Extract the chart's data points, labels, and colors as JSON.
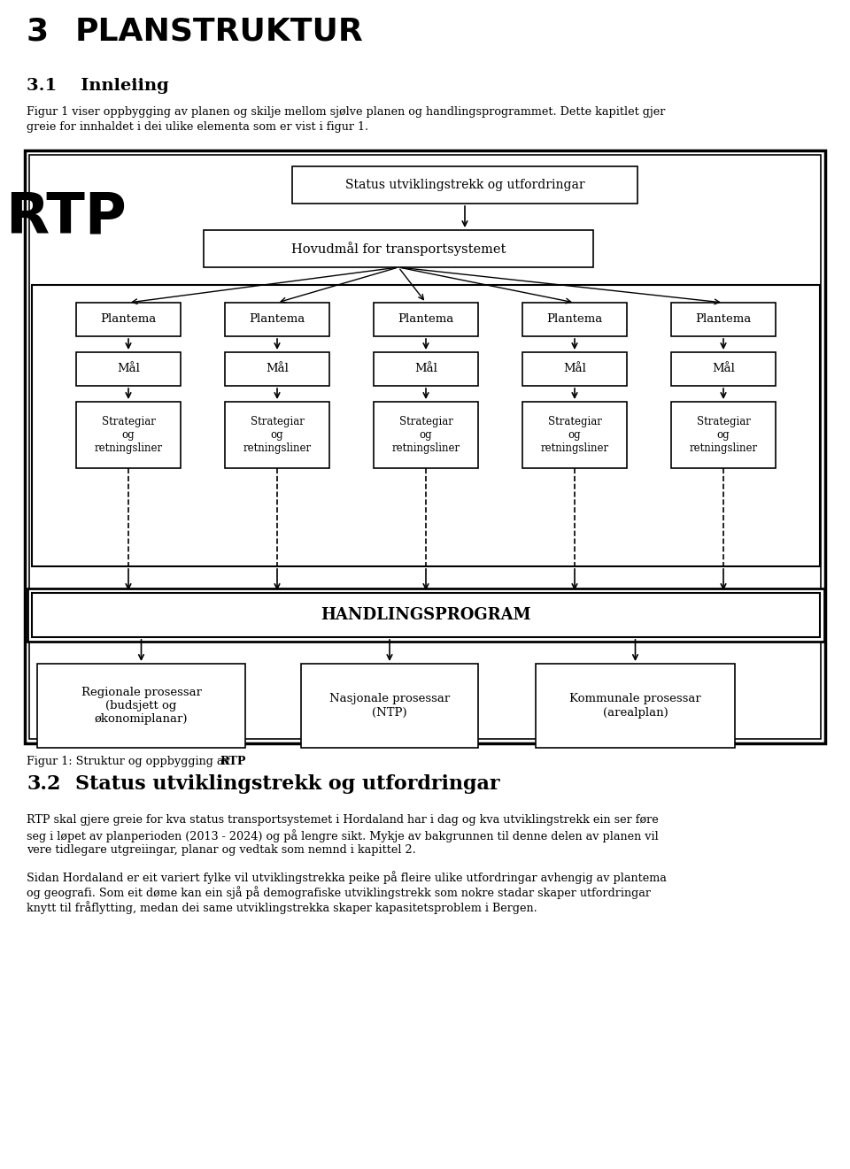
{
  "page_title_num": "3",
  "page_title_text": "PLANSTRUKTUR",
  "section_title": "3.1    Innleiing",
  "intro_text1": "Figur 1 viser oppbygging av planen og skilje mellom sjølve planen og handlingsprogrammet. Dette kapitlet gjer",
  "intro_text2": "greie for innhaldet i dei ulike elementa som er vist i figur 1.",
  "fig_label_normal": "Figur 1: Struktur og oppbygging av ",
  "fig_label_bold": "RTP",
  "section2_num": "3.2",
  "section2_text": "Status utviklingstrekk og utfordringar",
  "para1_line1": "RTP skal gjere greie for kva status transportsystemet i Hordaland har i dag og kva utviklingstrekk ein ser føre",
  "para1_line2": "seg i løpet av planperioden (2013 - 2024) og på lengre sikt. Mykje av bakgrunnen til denne delen av planen vil",
  "para1_line3": "vere tidlegare utgreiingar, planar og vedtak som nemnd i kapittel 2.",
  "para2_line1": "Sidan Hordaland er eit variert fylke vil utviklingstrekka peike på fleire ulike utfordringar avhengig av plantema",
  "para2_line2": "og geografi. Som eit døme kan ein sjå på demografiske utviklingstrekk som nokre stadar skaper utfordringar",
  "para2_line3": "knytt til fråflytting, medan dei same utviklingstrekka skaper kapasitetsproblem i Bergen.",
  "bg_color": "#ffffff",
  "text_color": "#000000"
}
